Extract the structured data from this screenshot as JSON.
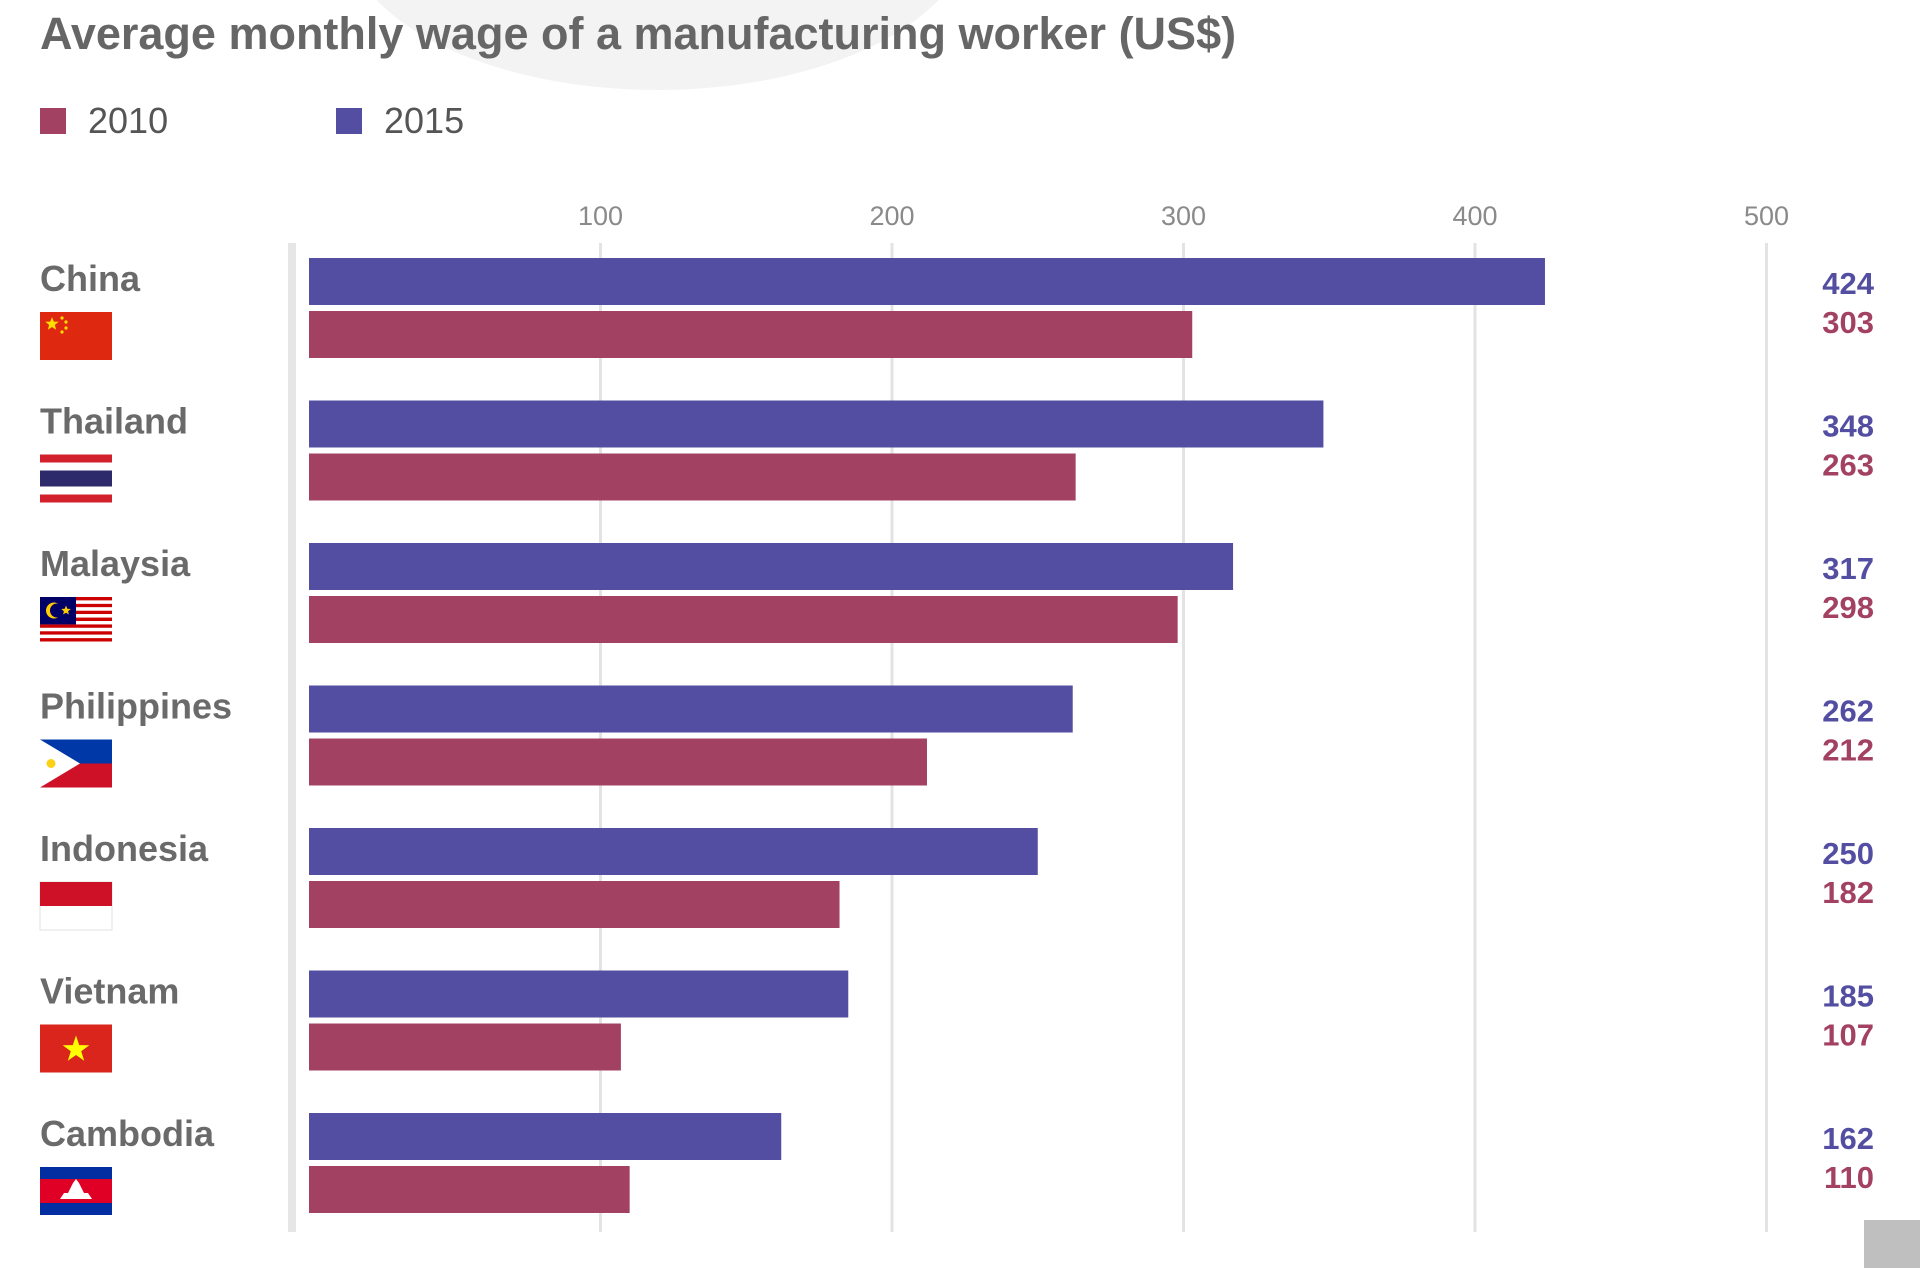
{
  "page": {
    "background": "#ffffff"
  },
  "chart_data": {
    "type": "bar",
    "orientation": "horizontal",
    "title": "Average monthly wage  of a manufacturing worker (US$)",
    "categories": [
      "China",
      "Thailand",
      "Malaysia",
      "Philippines",
      "Indonesia",
      "Vietnam",
      "Cambodia"
    ],
    "series": [
      {
        "name": "2015",
        "color": "#534ea1",
        "values": [
          424,
          348,
          317,
          262,
          250,
          185,
          162
        ]
      },
      {
        "name": "2010",
        "color": "#a34163",
        "values": [
          303,
          263,
          298,
          212,
          182,
          107,
          110
        ]
      }
    ],
    "legend_order": [
      "2010",
      "2015"
    ],
    "legend_position": "top-left",
    "xlim": [
      0,
      500
    ],
    "x_ticks": [
      100,
      200,
      300,
      400,
      500
    ],
    "grid": true,
    "flag_icons": [
      "china-flag-icon",
      "thailand-flag-icon",
      "malaysia-flag-icon",
      "philippines-flag-icon",
      "indonesia-flag-icon",
      "vietnam-flag-icon",
      "cambodia-flag-icon"
    ]
  }
}
